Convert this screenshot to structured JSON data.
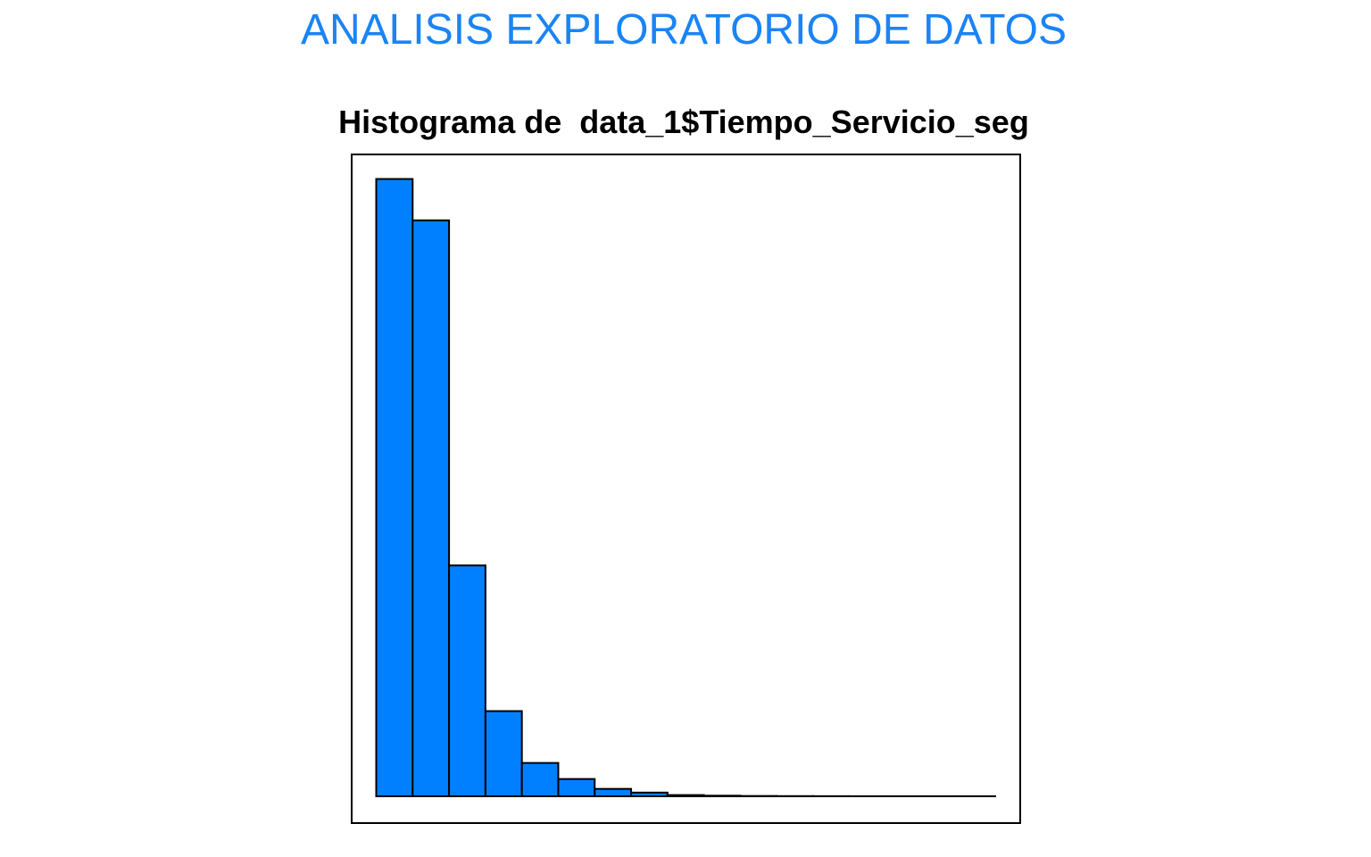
{
  "page_title": "ANALISIS EXPLORATORIO DE DATOS",
  "colors": {
    "title": "#1a84f6",
    "bar_fill": "#0080ff",
    "bar_stroke": "#000000",
    "frame": "#000000"
  },
  "chart_data": {
    "type": "bar",
    "title": "Histograma de  data_1$Tiempo_Servicio_seg",
    "xlabel": "",
    "ylabel": "",
    "axes_visible": false,
    "grid": false,
    "bar_gap": 0,
    "bins": 17,
    "values": [
      1000,
      933,
      374,
      138,
      54,
      28,
      12,
      6,
      2,
      1,
      0.5,
      0.3,
      0.2,
      0.1,
      0.1,
      0.1,
      0.1
    ],
    "ylim": [
      0,
      1000
    ]
  }
}
